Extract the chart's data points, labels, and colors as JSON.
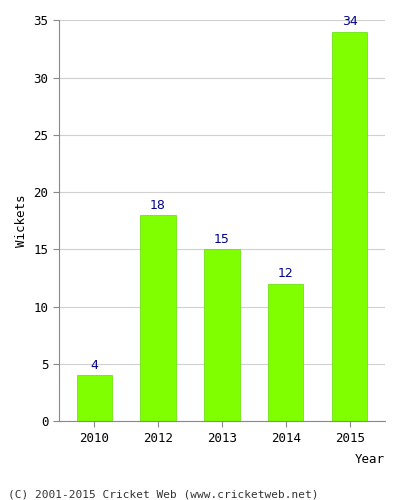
{
  "categories": [
    "2010",
    "2012",
    "2013",
    "2014",
    "2015"
  ],
  "values": [
    4,
    18,
    15,
    12,
    34
  ],
  "bar_color": "#7fff00",
  "bar_edge_color": "#5fdf00",
  "label_color": "#00008b",
  "xlabel": "Year",
  "ylabel": "Wickets",
  "ylim": [
    0,
    35
  ],
  "yticks": [
    0,
    5,
    10,
    15,
    20,
    25,
    30,
    35
  ],
  "label_fontsize": 9,
  "axis_label_fontsize": 9,
  "tick_fontsize": 9,
  "footer_text": "(C) 2001-2015 Cricket Web (www.cricketweb.net)",
  "footer_fontsize": 8,
  "background_color": "#ffffff",
  "plot_background_color": "#ffffff",
  "grid_color": "#d0d0d0"
}
